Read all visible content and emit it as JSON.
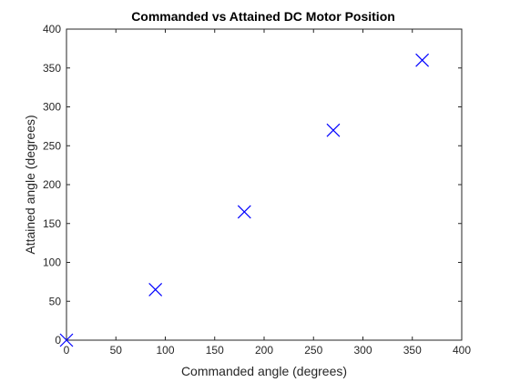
{
  "chart_data": {
    "type": "scatter",
    "title": "Commanded vs Attained DC Motor Position",
    "xlabel": "Commanded angle (degrees)",
    "ylabel": "Attained angle (degrees)",
    "xlim": [
      0,
      400
    ],
    "ylim": [
      0,
      400
    ],
    "xticks": [
      "0",
      "50",
      "100",
      "150",
      "200",
      "250",
      "300",
      "350",
      "400"
    ],
    "yticks": [
      "0",
      "50",
      "100",
      "150",
      "200",
      "250",
      "300",
      "350",
      "400"
    ],
    "grid": false,
    "marker": "x",
    "marker_color": "#0000ff",
    "x": [
      0,
      90,
      180,
      270,
      360
    ],
    "y": [
      0,
      65,
      165,
      270,
      360
    ]
  }
}
